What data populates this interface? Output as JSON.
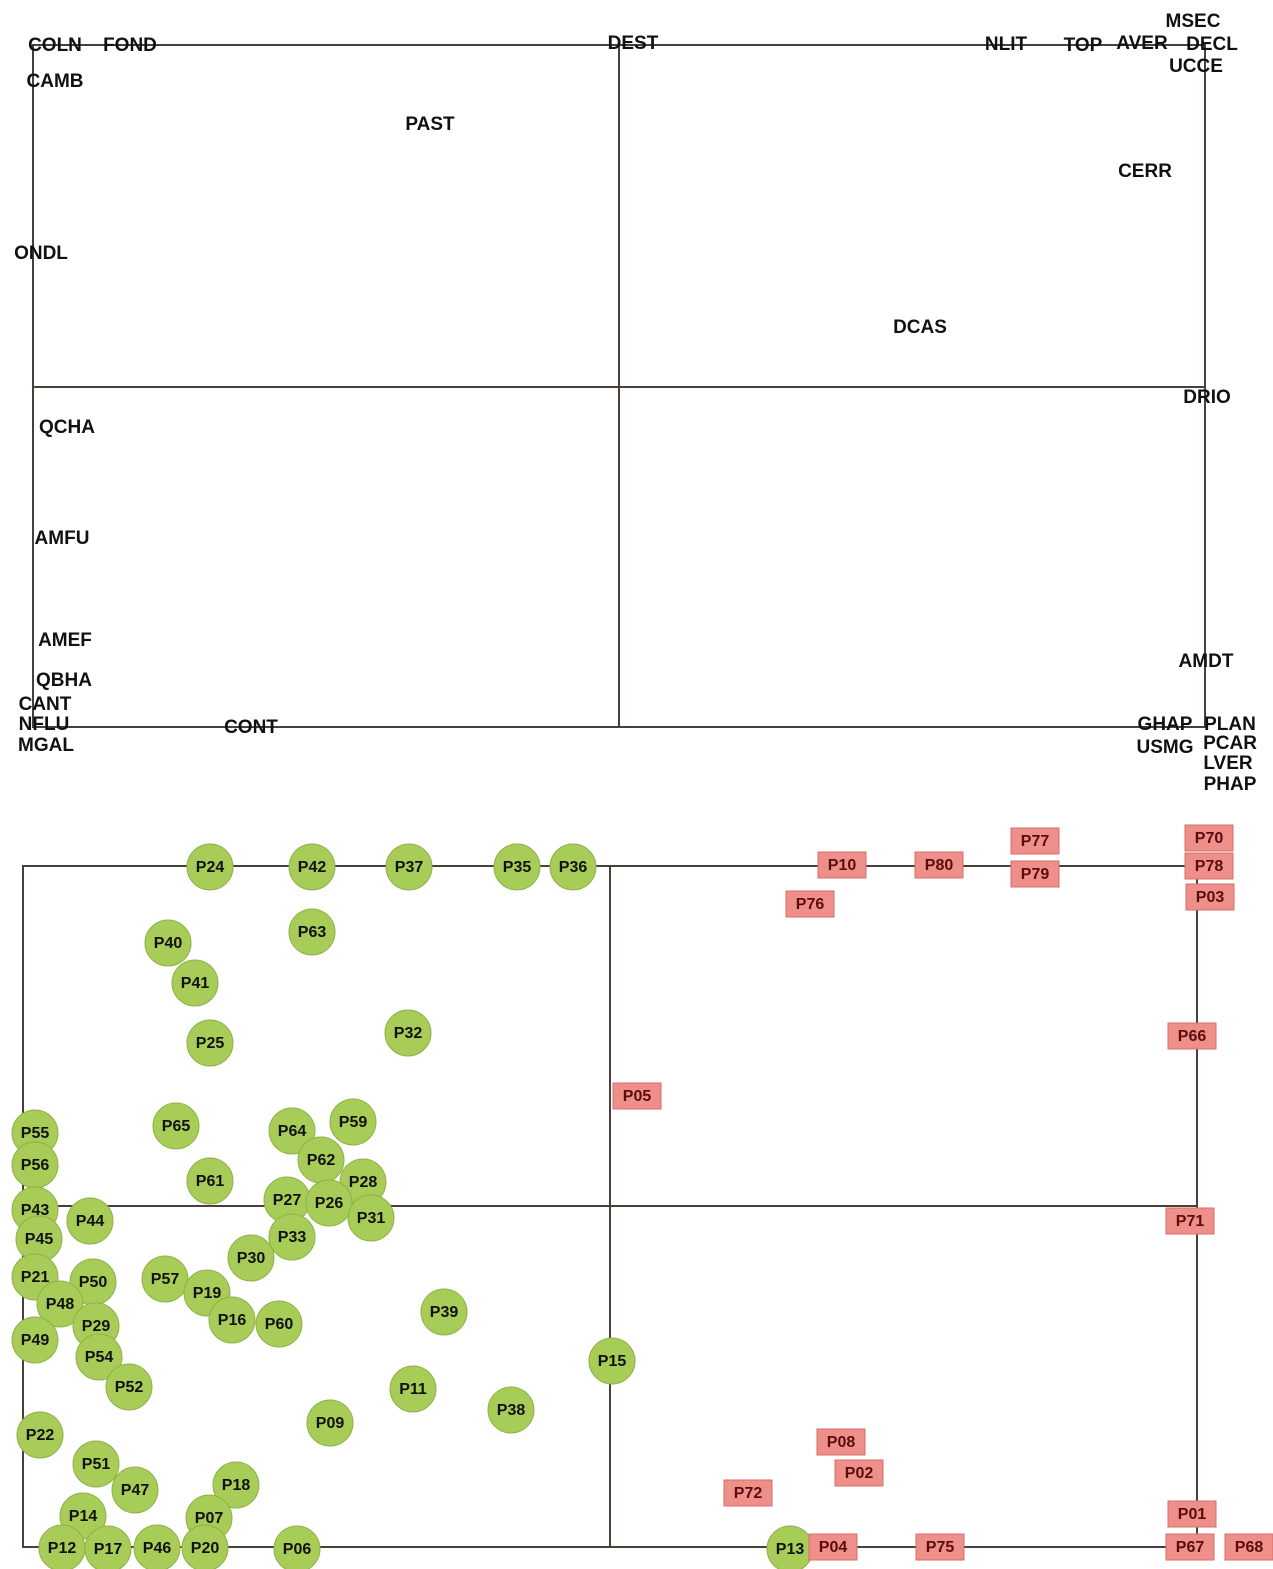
{
  "top_panel": {
    "labels": [
      "MSEC",
      "COLN",
      "FOND",
      "DEST",
      "NLIT",
      "TOP",
      "AVER",
      "DECL",
      "UCCE",
      "CAMB",
      "PAST",
      "CERR",
      "ONDL",
      "DCAS",
      "DRIO",
      "QCHA",
      "AMFU",
      "AMEF",
      "AMDT",
      "QBHA",
      "CANT",
      "NFLU",
      "CONT",
      "GHAP",
      "PLAN",
      "MGAL",
      "USMG",
      "PCAR",
      "LVER",
      "PHAP"
    ]
  },
  "bottom_panel": {
    "green_points": [
      "P24",
      "P42",
      "P37",
      "P35",
      "P36",
      "P40",
      "P63",
      "P41",
      "P25",
      "P32",
      "P65",
      "P64",
      "P59",
      "P55",
      "P56",
      "P62",
      "P61",
      "P28",
      "P27",
      "P26",
      "P31",
      "P43",
      "P44",
      "P45",
      "P33",
      "P30",
      "P21",
      "P50",
      "P57",
      "P19",
      "P48",
      "P16",
      "P60",
      "P39",
      "P29",
      "P49",
      "P54",
      "P15",
      "P52",
      "P11",
      "P38",
      "P09",
      "P22",
      "P51",
      "P47",
      "P18",
      "P14",
      "P07",
      "P12",
      "P17",
      "P46",
      "P20",
      "P06",
      "P13"
    ],
    "red_points": [
      "P70",
      "P77",
      "P10",
      "P80",
      "P79",
      "P78",
      "P76",
      "P03",
      "P66",
      "P05",
      "P71",
      "P08",
      "P02",
      "P72",
      "P01",
      "P04",
      "P75",
      "P67",
      "P68"
    ]
  }
}
